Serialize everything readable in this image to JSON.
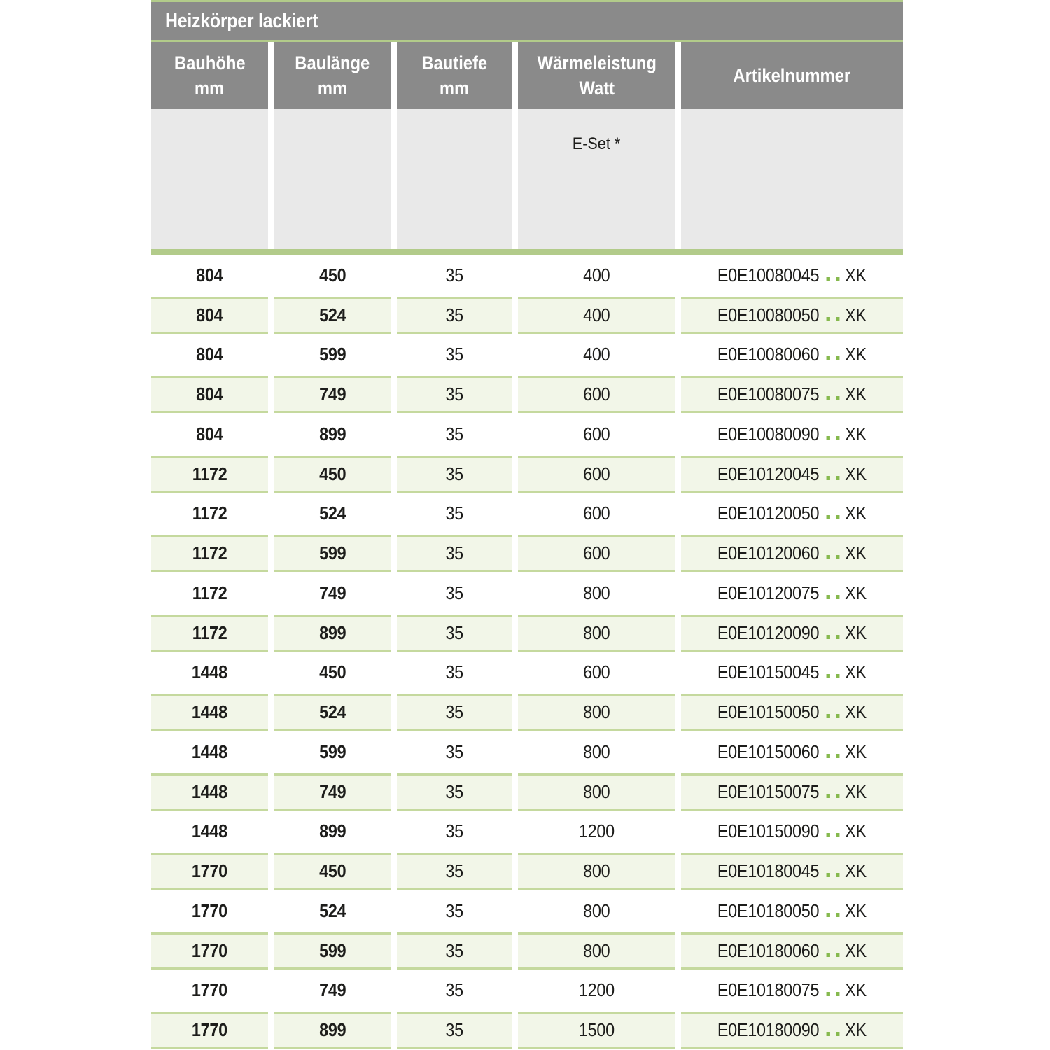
{
  "title": "Heizkörper lackiert",
  "columns": [
    {
      "key": "bauhoehe",
      "label": "Bauhöhe",
      "unit": "mm"
    },
    {
      "key": "baulaenge",
      "label": "Baulänge",
      "unit": "mm"
    },
    {
      "key": "bautiefe",
      "label": "Bautiefe",
      "unit": "mm"
    },
    {
      "key": "waermeleistung",
      "label": "Wärmeleistung",
      "unit": "Watt"
    },
    {
      "key": "artikelnummer",
      "label": "Artikelnummer",
      "unit": ""
    }
  ],
  "subheader_note": "E-Set *",
  "article_suffix": "XK",
  "rows": [
    {
      "bauhoehe": "804",
      "baulaenge": "450",
      "bautiefe": "35",
      "waermeleistung": "400",
      "artikel": "E0E10080045"
    },
    {
      "bauhoehe": "804",
      "baulaenge": "524",
      "bautiefe": "35",
      "waermeleistung": "400",
      "artikel": "E0E10080050"
    },
    {
      "bauhoehe": "804",
      "baulaenge": "599",
      "bautiefe": "35",
      "waermeleistung": "400",
      "artikel": "E0E10080060"
    },
    {
      "bauhoehe": "804",
      "baulaenge": "749",
      "bautiefe": "35",
      "waermeleistung": "600",
      "artikel": "E0E10080075"
    },
    {
      "bauhoehe": "804",
      "baulaenge": "899",
      "bautiefe": "35",
      "waermeleistung": "600",
      "artikel": "E0E10080090"
    },
    {
      "bauhoehe": "1172",
      "baulaenge": "450",
      "bautiefe": "35",
      "waermeleistung": "600",
      "artikel": "E0E10120045"
    },
    {
      "bauhoehe": "1172",
      "baulaenge": "524",
      "bautiefe": "35",
      "waermeleistung": "600",
      "artikel": "E0E10120050"
    },
    {
      "bauhoehe": "1172",
      "baulaenge": "599",
      "bautiefe": "35",
      "waermeleistung": "600",
      "artikel": "E0E10120060"
    },
    {
      "bauhoehe": "1172",
      "baulaenge": "749",
      "bautiefe": "35",
      "waermeleistung": "800",
      "artikel": "E0E10120075"
    },
    {
      "bauhoehe": "1172",
      "baulaenge": "899",
      "bautiefe": "35",
      "waermeleistung": "800",
      "artikel": "E0E10120090"
    },
    {
      "bauhoehe": "1448",
      "baulaenge": "450",
      "bautiefe": "35",
      "waermeleistung": "600",
      "artikel": "E0E10150045"
    },
    {
      "bauhoehe": "1448",
      "baulaenge": "524",
      "bautiefe": "35",
      "waermeleistung": "800",
      "artikel": "E0E10150050"
    },
    {
      "bauhoehe": "1448",
      "baulaenge": "599",
      "bautiefe": "35",
      "waermeleistung": "800",
      "artikel": "E0E10150060"
    },
    {
      "bauhoehe": "1448",
      "baulaenge": "749",
      "bautiefe": "35",
      "waermeleistung": "800",
      "artikel": "E0E10150075"
    },
    {
      "bauhoehe": "1448",
      "baulaenge": "899",
      "bautiefe": "35",
      "waermeleistung": "1200",
      "artikel": "E0E10150090"
    },
    {
      "bauhoehe": "1770",
      "baulaenge": "450",
      "bautiefe": "35",
      "waermeleistung": "800",
      "artikel": "E0E10180045"
    },
    {
      "bauhoehe": "1770",
      "baulaenge": "524",
      "bautiefe": "35",
      "waermeleistung": "800",
      "artikel": "E0E10180050"
    },
    {
      "bauhoehe": "1770",
      "baulaenge": "599",
      "bautiefe": "35",
      "waermeleistung": "800",
      "artikel": "E0E10180060"
    },
    {
      "bauhoehe": "1770",
      "baulaenge": "749",
      "bautiefe": "35",
      "waermeleistung": "1200",
      "artikel": "E0E10180075"
    },
    {
      "bauhoehe": "1770",
      "baulaenge": "899",
      "bautiefe": "35",
      "waermeleistung": "1500",
      "artikel": "E0E10180090"
    }
  ],
  "colors": {
    "header_gray": "#8a8a8a",
    "accent_green": "#b2cb8a",
    "subheader_band_gray": "#e9e9e9",
    "row_green_bg": "#f2f6e8",
    "row_green_border": "#c5d99e",
    "dot_green": "#86b94e",
    "text_dark": "#1d1d1b",
    "header_text": "#ffffff"
  }
}
